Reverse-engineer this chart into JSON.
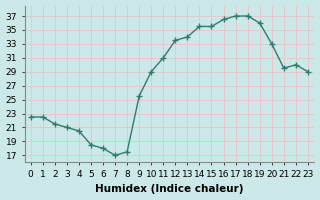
{
  "x": [
    0,
    1,
    2,
    3,
    4,
    5,
    6,
    7,
    8,
    9,
    10,
    11,
    12,
    13,
    14,
    15,
    16,
    17,
    18,
    19,
    20,
    21,
    22,
    23
  ],
  "y": [
    22.5,
    22.5,
    21.5,
    21.0,
    20.5,
    18.5,
    18.0,
    17.0,
    17.5,
    25.5,
    29.0,
    31.0,
    33.5,
    34.0,
    35.5,
    35.5,
    36.5,
    37.0,
    37.0,
    36.0,
    33.0,
    29.5,
    30.0,
    29.0
  ],
  "line_color": "#2e7d6e",
  "marker": "+",
  "marker_size": 4,
  "linewidth": 1.0,
  "xlabel": "Humidex (Indice chaleur)",
  "ylabel": "",
  "xlim": [
    -0.5,
    23.5
  ],
  "ylim": [
    16,
    38.5
  ],
  "yticks": [
    17,
    19,
    21,
    23,
    25,
    27,
    29,
    31,
    33,
    35,
    37
  ],
  "xticks": [
    0,
    1,
    2,
    3,
    4,
    5,
    6,
    7,
    8,
    9,
    10,
    11,
    12,
    13,
    14,
    15,
    16,
    17,
    18,
    19,
    20,
    21,
    22,
    23
  ],
  "xtick_labels": [
    "0",
    "1",
    "2",
    "3",
    "4",
    "5",
    "6",
    "7",
    "8",
    "9",
    "10",
    "11",
    "12",
    "13",
    "14",
    "15",
    "16",
    "17",
    "18",
    "19",
    "20",
    "21",
    "22",
    "23"
  ],
  "bg_color": "#cce8e8",
  "grid_color": "#e8c8c8",
  "axis_label_fontsize": 7.5,
  "tick_fontsize": 6.5
}
